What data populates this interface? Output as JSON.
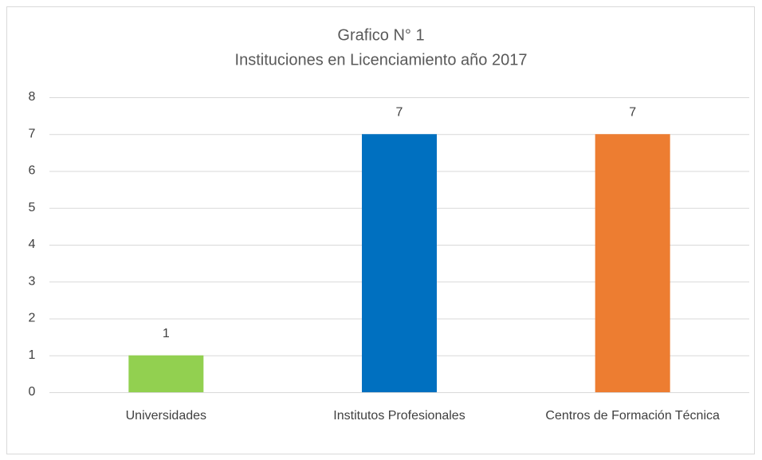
{
  "chart_data": {
    "type": "bar",
    "title": "Grafico N° 1",
    "subtitle": "Instituciones en Licenciamiento año 2017",
    "categories": [
      "Universidades",
      "Institutos Profesionales",
      "Centros de Formación Técnica"
    ],
    "values": [
      1,
      7,
      7
    ],
    "colors": [
      "#92d050",
      "#0070c0",
      "#ed7d31"
    ],
    "ylim": [
      0,
      8
    ],
    "yticks": [
      0,
      1,
      2,
      3,
      4,
      5,
      6,
      7,
      8
    ],
    "grid": true,
    "data_labels": true
  }
}
